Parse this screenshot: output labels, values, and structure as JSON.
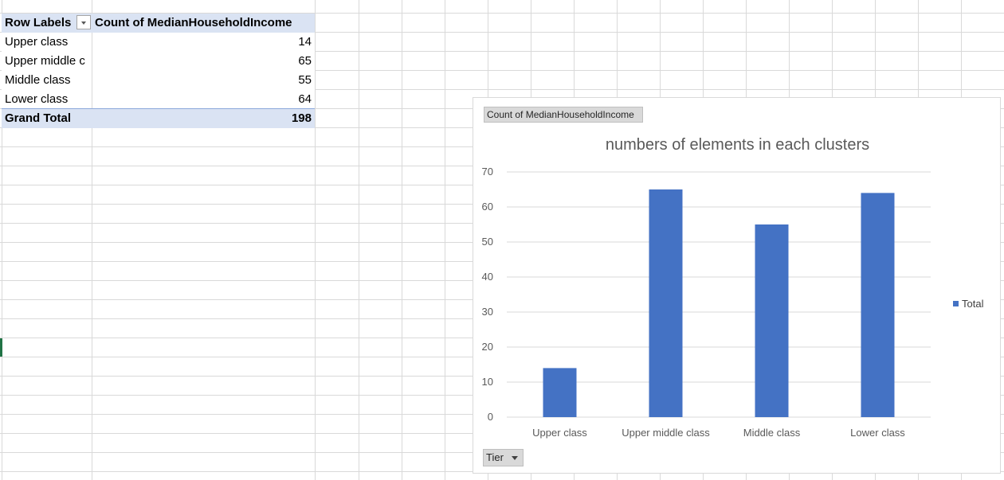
{
  "pivot_table": {
    "header": {
      "row_labels": "Row Labels",
      "value_column": "Count of MedianHouseholdIncome"
    },
    "rows": [
      {
        "label": "Upper class",
        "value": "14"
      },
      {
        "label": "Upper middle c",
        "value": "65"
      },
      {
        "label": "Middle class",
        "value": "55"
      },
      {
        "label": "Lower class",
        "value": "64"
      }
    ],
    "grand_total": {
      "label": "Grand Total",
      "value": "198"
    }
  },
  "chart_panel": {
    "field_button": "Count of MedianHouseholdIncome",
    "axis_field_button": "Tier"
  },
  "chart_data": {
    "type": "bar",
    "title": "numbers of elements in each clusters",
    "categories": [
      "Upper class",
      "Upper middle class",
      "Middle class",
      "Lower class"
    ],
    "series": [
      {
        "name": "Total",
        "values": [
          14,
          65,
          55,
          64
        ],
        "color": "#4472c4"
      }
    ],
    "ylim": [
      0,
      70
    ],
    "yticks": [
      0,
      10,
      20,
      30,
      40,
      50,
      60,
      70
    ],
    "xlabel": "",
    "ylabel": "",
    "grid": true,
    "legend": "right"
  }
}
